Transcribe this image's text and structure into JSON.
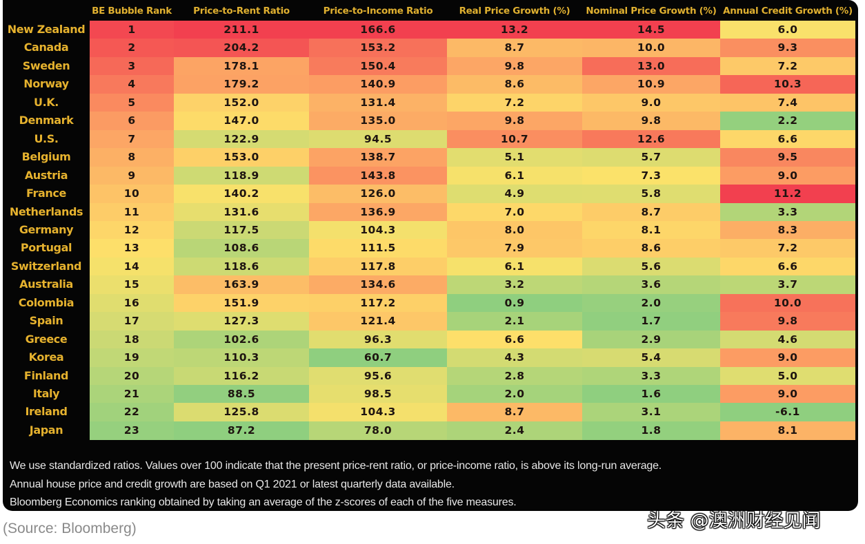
{
  "chart_data": {
    "type": "table",
    "title": "",
    "row_header_label": "",
    "columns": [
      "BE Bubble Rank",
      "Price-to-Rent Ratio",
      "Price-to-Income Ratio",
      "Real Price Growth (%)",
      "Nominal Price Growth (%)",
      "Annual Credit Growth (%)"
    ],
    "rows": [
      {
        "country": "New Zealand",
        "values": [
          "1",
          "211.1",
          "166.6",
          "13.2",
          "14.5",
          "6.0"
        ]
      },
      {
        "country": "Canada",
        "values": [
          "2",
          "204.2",
          "153.2",
          "8.7",
          "10.0",
          "9.3"
        ]
      },
      {
        "country": "Sweden",
        "values": [
          "3",
          "178.1",
          "150.4",
          "9.8",
          "13.0",
          "7.2"
        ]
      },
      {
        "country": "Norway",
        "values": [
          "4",
          "179.2",
          "140.9",
          "8.6",
          "10.9",
          "10.3"
        ]
      },
      {
        "country": "U.K.",
        "values": [
          "5",
          "152.0",
          "131.4",
          "7.2",
          "9.0",
          "7.4"
        ]
      },
      {
        "country": "Denmark",
        "values": [
          "6",
          "147.0",
          "135.0",
          "9.8",
          "9.8",
          "2.2"
        ]
      },
      {
        "country": "U.S.",
        "values": [
          "7",
          "122.9",
          "94.5",
          "10.7",
          "12.6",
          "6.6"
        ]
      },
      {
        "country": "Belgium",
        "values": [
          "8",
          "153.0",
          "138.7",
          "5.1",
          "5.7",
          "9.5"
        ]
      },
      {
        "country": "Austria",
        "values": [
          "9",
          "118.9",
          "143.8",
          "6.1",
          "7.3",
          "9.0"
        ]
      },
      {
        "country": "France",
        "values": [
          "10",
          "140.2",
          "126.0",
          "4.9",
          "5.8",
          "11.2"
        ]
      },
      {
        "country": "Netherlands",
        "values": [
          "11",
          "131.6",
          "136.9",
          "7.0",
          "8.7",
          "3.3"
        ]
      },
      {
        "country": "Germany",
        "values": [
          "12",
          "117.5",
          "104.3",
          "8.0",
          "8.1",
          "8.3"
        ]
      },
      {
        "country": "Portugal",
        "values": [
          "13",
          "108.6",
          "111.5",
          "7.9",
          "8.6",
          "7.2"
        ]
      },
      {
        "country": "Switzerland",
        "values": [
          "14",
          "118.6",
          "117.8",
          "6.1",
          "5.6",
          "6.6"
        ]
      },
      {
        "country": "Australia",
        "values": [
          "15",
          "163.9",
          "134.6",
          "3.2",
          "3.6",
          "3.7"
        ]
      },
      {
        "country": "Colombia",
        "values": [
          "16",
          "151.9",
          "117.2",
          "0.9",
          "2.0",
          "10.0"
        ]
      },
      {
        "country": "Spain",
        "values": [
          "17",
          "127.3",
          "121.4",
          "2.1",
          "1.7",
          "9.8"
        ]
      },
      {
        "country": "Greece",
        "values": [
          "18",
          "102.6",
          "96.3",
          "6.6",
          "2.9",
          "4.6"
        ]
      },
      {
        "country": "Korea",
        "values": [
          "19",
          "110.3",
          "60.7",
          "4.3",
          "5.4",
          "9.0"
        ]
      },
      {
        "country": "Finland",
        "values": [
          "20",
          "116.2",
          "95.6",
          "2.8",
          "3.3",
          "5.0"
        ]
      },
      {
        "country": "Italy",
        "values": [
          "21",
          "88.5",
          "98.5",
          "2.0",
          "1.6",
          "9.0"
        ]
      },
      {
        "country": "Ireland",
        "values": [
          "22",
          "125.8",
          "104.3",
          "8.7",
          "3.1",
          "-6.1"
        ]
      },
      {
        "country": "Japan",
        "values": [
          "23",
          "87.2",
          "78.0",
          "2.4",
          "1.8",
          "8.1"
        ]
      }
    ],
    "color_scale": {
      "low": "#8fcf7f",
      "mid": "#fde26a",
      "high": "#f2404f"
    }
  },
  "notes": [
    "We use standardized ratios. Values over 100 indicate that the present price-rent ratio, or price-income ratio, is above its long-run average.",
    "Annual house price and credit growth are based on Q1 2021 or latest quarterly data available.",
    "Bloomberg Economics ranking obtained by taking an average of the z-scores of each of the five measures."
  ],
  "source": "(Source: Bloomberg)",
  "watermark": "头条 @澳洲财经见闻"
}
